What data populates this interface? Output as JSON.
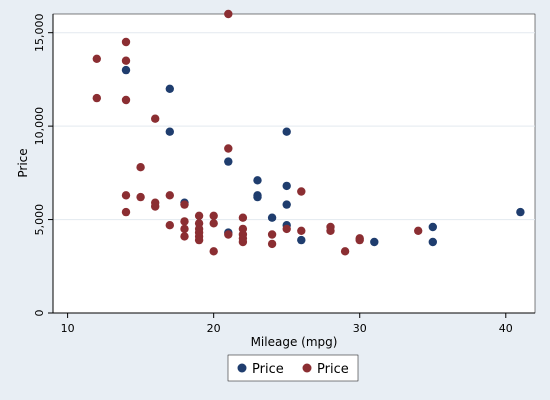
{
  "chart_data": {
    "type": "scatter",
    "xlabel": "Mileage (mpg)",
    "ylabel": "Price",
    "xlim": [
      9,
      42
    ],
    "ylim": [
      0,
      16000
    ],
    "xticks": [
      10,
      20,
      30,
      40
    ],
    "yticks": [
      0,
      5000,
      10000,
      15000
    ],
    "ytick_labels": [
      "0",
      "5,000",
      "10,000",
      "15,000"
    ],
    "grid": true,
    "legend_position": "bottom-center",
    "series": [
      {
        "name": "Price",
        "color": "#1f3d6e",
        "points": [
          [
            14,
            13000
          ],
          [
            17,
            12000
          ],
          [
            17,
            9700
          ],
          [
            18,
            5900
          ],
          [
            21,
            8100
          ],
          [
            21,
            4300
          ],
          [
            23,
            7100
          ],
          [
            23,
            6300
          ],
          [
            23,
            6200
          ],
          [
            24,
            5100
          ],
          [
            25,
            9700
          ],
          [
            25,
            6800
          ],
          [
            25,
            5800
          ],
          [
            25,
            4700
          ],
          [
            26,
            3900
          ],
          [
            31,
            3800
          ],
          [
            35,
            4600
          ],
          [
            35,
            3800
          ],
          [
            41,
            5400
          ]
        ]
      },
      {
        "name": "Price",
        "color": "#8b2e32",
        "points": [
          [
            12,
            13600
          ],
          [
            12,
            11500
          ],
          [
            14,
            14500
          ],
          [
            14,
            13500
          ],
          [
            14,
            11400
          ],
          [
            14,
            6300
          ],
          [
            14,
            5400
          ],
          [
            15,
            7800
          ],
          [
            15,
            6200
          ],
          [
            16,
            10400
          ],
          [
            16,
            5900
          ],
          [
            16,
            5700
          ],
          [
            17,
            6300
          ],
          [
            17,
            4700
          ],
          [
            18,
            5800
          ],
          [
            18,
            4900
          ],
          [
            18,
            4500
          ],
          [
            18,
            4100
          ],
          [
            19,
            5200
          ],
          [
            19,
            4800
          ],
          [
            19,
            4500
          ],
          [
            19,
            4300
          ],
          [
            19,
            4100
          ],
          [
            19,
            3900
          ],
          [
            20,
            5200
          ],
          [
            20,
            4800
          ],
          [
            20,
            3300
          ],
          [
            21,
            16000
          ],
          [
            21,
            8800
          ],
          [
            21,
            4200
          ],
          [
            22,
            5100
          ],
          [
            22,
            4500
          ],
          [
            22,
            4200
          ],
          [
            22,
            4000
          ],
          [
            22,
            3800
          ],
          [
            24,
            4200
          ],
          [
            24,
            3700
          ],
          [
            25,
            4500
          ],
          [
            26,
            6500
          ],
          [
            26,
            4400
          ],
          [
            28,
            4600
          ],
          [
            28,
            4400
          ],
          [
            29,
            3300
          ],
          [
            30,
            4000
          ],
          [
            30,
            3900
          ],
          [
            34,
            4400
          ]
        ]
      }
    ]
  }
}
